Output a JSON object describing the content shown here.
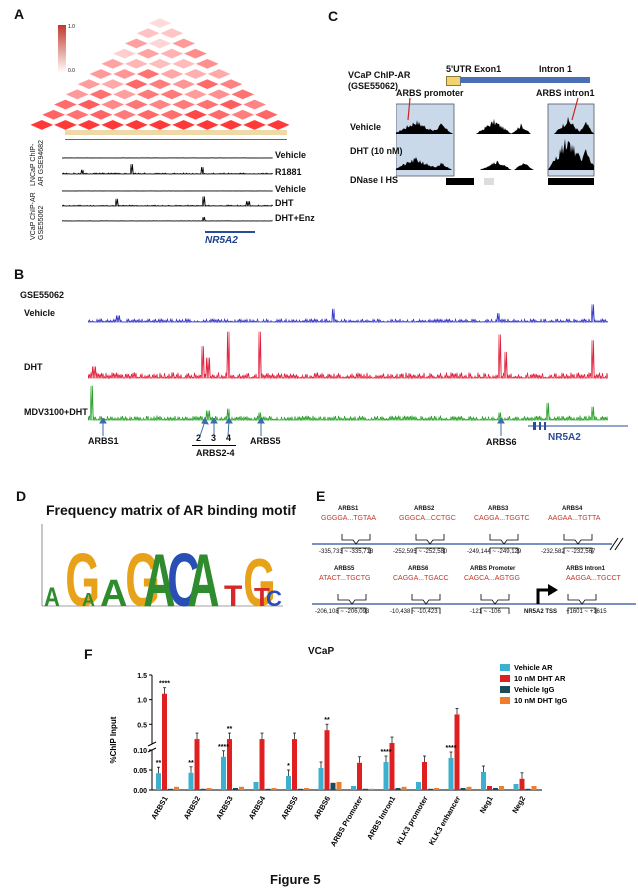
{
  "panels": {
    "A": {
      "label": "A",
      "heatmap_legend": {
        "high": "1.0",
        "low": "0.0"
      },
      "lncap_group": "LNCaP ChIP-AR GSE94682",
      "vcap_group": "VCaP ChIP-AR GSE55062",
      "tracks": [
        "Vehicle",
        "R1881",
        "Vehicle",
        "DHT",
        "DHT+Enz"
      ],
      "gene": "NR5A2"
    },
    "B": {
      "label": "B",
      "dataset": "GSE55062",
      "tracks": [
        "Vehicle",
        "DHT",
        "MDV3100+DHT"
      ],
      "sites": {
        "arbs1": "ARBS1",
        "n2": "2",
        "n3": "3",
        "n4": "4",
        "arbs24": "ARBS2-4",
        "arbs5": "ARBS5",
        "arbs6": "ARBS6"
      },
      "gene": "NR5A2"
    },
    "C": {
      "label": "C",
      "title": "VCaP ChIP-AR (GSE55062)",
      "utr": "5'UTR Exon1",
      "intron": "Intron 1",
      "arbs_promoter": "ARBS promoter",
      "arbs_intron": "ARBS intron1",
      "tracks": [
        "Vehicle",
        "DHT (10 nM)",
        "DNase I HS"
      ]
    },
    "D": {
      "label": "D",
      "title": "Frequency matrix of AR binding motif"
    },
    "E": {
      "label": "E",
      "row1": [
        {
          "name": "ARBS1",
          "seq": "GGGGA...TGTAA",
          "pos": "-335,733 ~ -335,718"
        },
        {
          "name": "ARBS2",
          "seq": "GGGCA...CCTGC",
          "pos": "-252,595 ~ -252,580"
        },
        {
          "name": "ARBS3",
          "seq": "CAGGA...TGGTC",
          "pos": "-249,144 ~ -249,129"
        },
        {
          "name": "ARBS4",
          "seq": "AAGAA...TGTTA",
          "pos": "-232,582 ~ -232,567"
        }
      ],
      "row2": [
        {
          "name": "ARBS5",
          "seq": "ATACT...TGCTG",
          "pos": "-206,108 ~ -206,093"
        },
        {
          "name": "ARBS6",
          "seq": "CAGGA...TGACC",
          "pos": "-10,438 ~ -10,423"
        },
        {
          "name": "ARBS Promoter",
          "seq": "CAGCA...AGTGG",
          "pos": "-121 ~ -106"
        },
        {
          "name": "ARBS Intron1",
          "seq": "AAGGA...TGCCT",
          "pos": "+1601 ~ +1615"
        }
      ],
      "tss": "NR5A2 TSS"
    },
    "F": {
      "label": "F",
      "title": "VCaP"
    }
  },
  "figure_caption": "Figure 5",
  "chart_data": {
    "type": "bar",
    "title": "VCaP",
    "ylabel": "%ChIP Input",
    "categories": [
      "ARBS1",
      "ARBS2",
      "ARBS3",
      "ARBS4",
      "ARBS5",
      "ARBS6",
      "ARBS Promoter",
      "ARBS Intron1",
      "KLK3 promoter",
      "KLK3 enhancer",
      "Neg1",
      "Neg2"
    ],
    "series": [
      {
        "name": "Vehicle AR",
        "color": "#3bb1cf",
        "values": [
          0.042,
          0.043,
          0.083,
          0.02,
          0.035,
          0.055,
          0.01,
          0.07,
          0.02,
          0.08,
          0.045,
          0.015
        ]
      },
      {
        "name": "10 nM DHT AR",
        "color": "#e02020",
        "values": [
          1.12,
          0.2,
          0.2,
          0.2,
          0.2,
          0.38,
          0.068,
          0.12,
          0.07,
          0.7,
          0.01,
          0.028
        ]
      },
      {
        "name": "Vehicle IgG",
        "color": "#1a4d5c",
        "values": [
          0.003,
          0.003,
          0.005,
          0.003,
          0.003,
          0.018,
          0.003,
          0.005,
          0.003,
          0.005,
          0.005,
          0.003
        ]
      },
      {
        "name": "10 nM DHT IgG",
        "color": "#f07d2a",
        "values": [
          0.008,
          0.005,
          0.008,
          0.005,
          0.005,
          0.02,
          0.003,
          0.008,
          0.005,
          0.008,
          0.01,
          0.01
        ]
      }
    ],
    "y_ticks": [
      "0.00",
      "0.05",
      "0.10",
      "0.5",
      "1.0",
      "1.5"
    ],
    "significance": [
      {
        "cat": "ARBS1",
        "vehicle": "**",
        "dht": "****"
      },
      {
        "cat": "ARBS2",
        "vehicle": "**",
        "dht": ""
      },
      {
        "cat": "ARBS3",
        "vehicle": "****",
        "dht": "**"
      },
      {
        "cat": "ARBS5",
        "vehicle": "*",
        "dht": ""
      },
      {
        "cat": "ARBS6",
        "vehicle": "",
        "dht": "**"
      },
      {
        "cat": "ARBS Intron1",
        "vehicle": "****",
        "dht": ""
      },
      {
        "cat": "KLK3 enhancer",
        "vehicle": "****",
        "dht": ""
      }
    ],
    "ylim": [
      0,
      1.5
    ],
    "grid": false,
    "legend": "top-right"
  }
}
